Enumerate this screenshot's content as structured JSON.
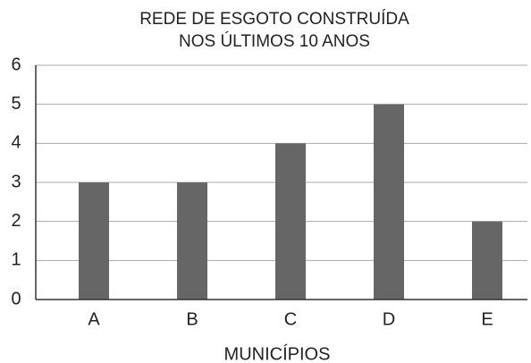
{
  "chart_data": {
    "type": "bar",
    "title": [
      "REDE DE ESGOTO CONSTRUÍDA",
      "NOS ÚLTIMOS 10 ANOS"
    ],
    "x_label": "MUNICÍPIOS",
    "categories": [
      "A",
      "B",
      "C",
      "D",
      "E"
    ],
    "values": [
      3,
      3,
      4,
      5,
      2
    ],
    "color": "#666666",
    "ylim": [
      0,
      6
    ],
    "yticks": [
      0,
      1,
      2,
      3,
      4,
      5,
      6
    ],
    "grid": true
  }
}
